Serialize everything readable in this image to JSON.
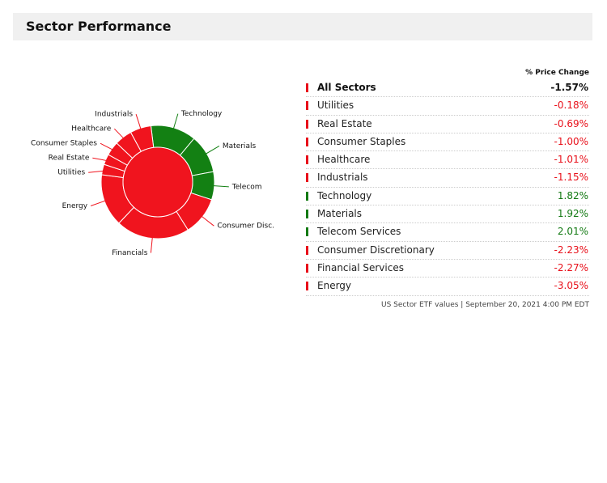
{
  "header": {
    "title": "Sector Performance"
  },
  "chart_data": {
    "type": "pie",
    "categories": [
      "Technology",
      "Materials",
      "Telecom",
      "Consumer Disc.",
      "Financials",
      "Energy",
      "Utilities",
      "Real Estate",
      "Consumer Staples",
      "Healthcare",
      "Industrials"
    ],
    "values": [
      13,
      11,
      8,
      11,
      21,
      15,
      3,
      3,
      4,
      5,
      6
    ],
    "colors": [
      "#138013",
      "#138013",
      "#138013",
      "#f0141e",
      "#f0141e",
      "#f0141e",
      "#f0141e",
      "#f0141e",
      "#f0141e",
      "#f0141e",
      "#f0141e"
    ],
    "center_color": "#f0141e"
  },
  "table": {
    "header": "% Price Change",
    "rows": [
      {
        "name": "All Sectors",
        "change": "-1.57%",
        "color": "#e8101a"
      },
      {
        "name": "Utilities",
        "change": "-0.18%",
        "color": "#e8101a"
      },
      {
        "name": "Real Estate",
        "change": "-0.69%",
        "color": "#e8101a"
      },
      {
        "name": "Consumer Staples",
        "change": "-1.00%",
        "color": "#e8101a"
      },
      {
        "name": "Healthcare",
        "change": "-1.01%",
        "color": "#e8101a"
      },
      {
        "name": "Industrials",
        "change": "-1.15%",
        "color": "#e8101a"
      },
      {
        "name": "Technology",
        "change": "1.82%",
        "color": "#137a13"
      },
      {
        "name": "Materials",
        "change": "1.92%",
        "color": "#137a13"
      },
      {
        "name": "Telecom Services",
        "change": "2.01%",
        "color": "#137a13"
      },
      {
        "name": "Consumer Discretionary",
        "change": "-2.23%",
        "color": "#e8101a"
      },
      {
        "name": "Financial Services",
        "change": "-2.27%",
        "color": "#e8101a"
      },
      {
        "name": "Energy",
        "change": "-3.05%",
        "color": "#e8101a"
      }
    ],
    "footer": "US Sector ETF values | September 20, 2021 4:00 PM  EDT"
  }
}
